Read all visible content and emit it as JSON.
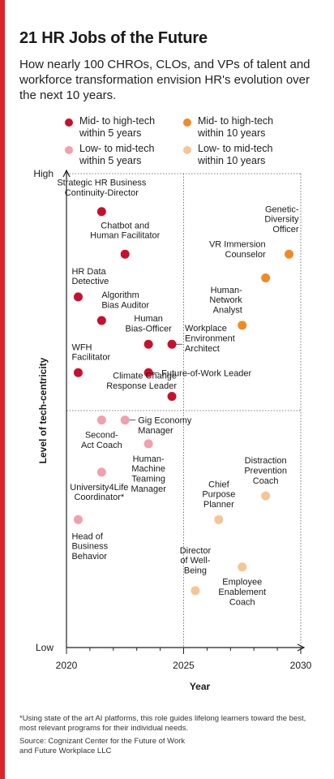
{
  "title": "21 HR Jobs of the Future",
  "subtitle": "How nearly 100 CHROs, CLOs, and VPs of talent and workforce transformation envision HR's evolution over the next 10 years.",
  "colors": {
    "accent": "#d9262c",
    "mid_high_5": "#c8102e",
    "mid_high_10": "#f28a23",
    "low_mid_5": "#f2a0ad",
    "low_mid_10": "#f5c594"
  },
  "legend": [
    {
      "key": "mid_high_5",
      "label": "Mid- to high-tech\nwithin 5 years"
    },
    {
      "key": "mid_high_10",
      "label": "Mid- to high-tech\nwithin 10 years"
    },
    {
      "key": "low_mid_5",
      "label": "Low- to mid-tech\nwithin 5 years"
    },
    {
      "key": "low_mid_10",
      "label": "Low- to mid-tech\nwithin 10 years"
    }
  ],
  "chart_data": {
    "type": "scatter",
    "title": "21 HR Jobs of the Future",
    "xlabel": "Year",
    "ylabel": "Level of tech-centricity",
    "xlim": [
      2020,
      2030
    ],
    "xticks": [
      "2020",
      "2025",
      "2030"
    ],
    "ylim": [
      0,
      100
    ],
    "yticks": {
      "high": "High",
      "low": "Low"
    },
    "points": [
      {
        "label": "Strategic HR Business\nContinuity-Director",
        "x": 2021.5,
        "y": 92,
        "group": "mid_high_5"
      },
      {
        "label": "Chatbot and\nHuman Facilitator",
        "x": 2022.5,
        "y": 83,
        "group": "mid_high_5"
      },
      {
        "label": "HR Data\nDetective",
        "x": 2020.5,
        "y": 74,
        "group": "mid_high_5"
      },
      {
        "label": "Algorithm\nBias Auditor",
        "x": 2021.5,
        "y": 69,
        "group": "mid_high_5"
      },
      {
        "label": "Human\nBias-Officer",
        "x": 2023.5,
        "y": 64,
        "group": "mid_high_5"
      },
      {
        "label": "Workplace\nEnvironment\nArchitect",
        "x": 2024.5,
        "y": 64,
        "group": "mid_high_5"
      },
      {
        "label": "WFH\nFacilitator",
        "x": 2020.5,
        "y": 58,
        "group": "mid_high_5"
      },
      {
        "label": "Future-of-Work Leader",
        "x": 2023.5,
        "y": 58,
        "group": "mid_high_5"
      },
      {
        "label": "Climate Change\nResponse Leader",
        "x": 2024.5,
        "y": 53,
        "group": "mid_high_5"
      },
      {
        "label": "Genetic-\nDiversity\nOfficer",
        "x": 2029.5,
        "y": 83,
        "group": "mid_high_10"
      },
      {
        "label": "VR Immersion\nCounselor",
        "x": 2028.5,
        "y": 78,
        "group": "mid_high_10"
      },
      {
        "label": "Human-\nNetwork\nAnalyst",
        "x": 2027.5,
        "y": 68,
        "group": "mid_high_10"
      },
      {
        "label": "Second-\nAct Coach",
        "x": 2021.5,
        "y": 48,
        "group": "low_mid_5"
      },
      {
        "label": "Gig Economy\nManager",
        "x": 2022.5,
        "y": 48,
        "group": "low_mid_5"
      },
      {
        "label": "Human-\nMachine\nTeaming\nManager",
        "x": 2023.5,
        "y": 43,
        "group": "low_mid_5"
      },
      {
        "label": "University4Life\nCoordinator*",
        "x": 2021.5,
        "y": 37,
        "group": "low_mid_5"
      },
      {
        "label": "Head of\nBusiness\nBehavior",
        "x": 2020.5,
        "y": 27,
        "group": "low_mid_5"
      },
      {
        "label": "Distraction\nPrevention\nCoach",
        "x": 2028.5,
        "y": 32,
        "group": "low_mid_10"
      },
      {
        "label": "Chief\nPurpose\nPlanner",
        "x": 2026.5,
        "y": 27,
        "group": "low_mid_10"
      },
      {
        "label": "Director\nof Well-\nBeing",
        "x": 2025.5,
        "y": 12,
        "group": "low_mid_10"
      },
      {
        "label": "Employee\nEnablement\nCoach",
        "x": 2027.5,
        "y": 17,
        "group": "low_mid_10"
      }
    ]
  },
  "footnote": "*Using state of the art AI platforms, this role guides lifelong learners toward the best, most relevant programs for their individual needs.",
  "source": "Source: Cognizant Center for the Future of Work\nand Future Workplace LLC"
}
